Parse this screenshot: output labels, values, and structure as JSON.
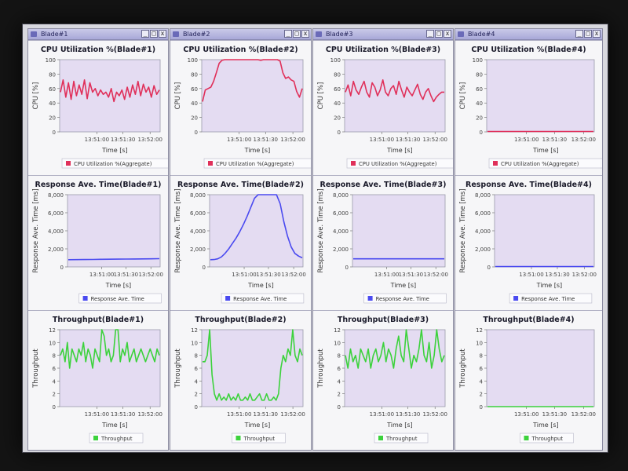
{
  "colors": {
    "cpu": "#e0305a",
    "response": "#4a4af0",
    "throughput": "#3cd23c",
    "plot_bg": "#e4dcf2"
  },
  "windows": [
    {
      "title": "Blade#1",
      "icons": {
        "minimize": "_",
        "maximize": "□",
        "close": "x"
      }
    },
    {
      "title": "Blade#2",
      "icons": {
        "minimize": "_",
        "maximize": "□",
        "close": "x"
      }
    },
    {
      "title": "Blade#3",
      "icons": {
        "minimize": "_",
        "maximize": "□",
        "close": "x"
      }
    },
    {
      "title": "Blade#4",
      "icons": {
        "minimize": "_",
        "maximize": "□",
        "close": "x"
      }
    }
  ],
  "chart_data": [
    {
      "id": "cpu-1",
      "type": "line",
      "title": "CPU Utilization %(Blade#1)",
      "xlabel": "Time [s]",
      "ylabel": "CPU [%]",
      "ylim": [
        0,
        100
      ],
      "yticks": [
        0,
        20,
        40,
        60,
        80,
        100
      ],
      "xticks": [
        "13:51:00",
        "13:51:30",
        "13:52:00"
      ],
      "legend": "CPU Utilization %(Aggregate)",
      "color": "#e0305a",
      "series": [
        {
          "name": "CPU Utilization %(Aggregate)",
          "values": [
            55,
            72,
            48,
            68,
            45,
            70,
            50,
            65,
            52,
            72,
            46,
            68,
            55,
            60,
            50,
            58,
            52,
            55,
            48,
            60,
            42,
            55,
            50,
            58,
            45,
            62,
            48,
            65,
            52,
            70,
            50,
            66,
            55,
            62,
            48,
            64,
            52,
            58
          ]
        }
      ]
    },
    {
      "id": "cpu-2",
      "type": "line",
      "title": "CPU Utilization %(Blade#2)",
      "xlabel": "Time [s]",
      "ylabel": "CPU [%]",
      "ylim": [
        0,
        100
      ],
      "yticks": [
        0,
        20,
        40,
        60,
        80,
        100
      ],
      "xticks": [
        "13:51:00",
        "13:51:30",
        "13:52:00"
      ],
      "legend": "CPU Utilization %(Aggregate)",
      "color": "#e0305a",
      "series": [
        {
          "name": "CPU Utilization %(Aggregate)",
          "values": [
            42,
            58,
            60,
            62,
            70,
            82,
            95,
            99,
            100,
            100,
            100,
            100,
            100,
            100,
            100,
            100,
            100,
            100,
            100,
            100,
            100,
            99,
            100,
            100,
            100,
            100,
            100,
            100,
            98,
            82,
            74,
            76,
            72,
            70,
            56,
            48,
            60
          ]
        }
      ]
    },
    {
      "id": "cpu-3",
      "type": "line",
      "title": "CPU Utilization %(Blade#3)",
      "xlabel": "Time [s]",
      "ylabel": "CPU [%]",
      "ylim": [
        0,
        100
      ],
      "yticks": [
        0,
        20,
        40,
        60,
        80,
        100
      ],
      "xticks": [
        "13:51:00",
        "13:51:30",
        "13:52:00"
      ],
      "legend": "CPU Utilization %(Aggregate)",
      "color": "#e0305a",
      "series": [
        {
          "name": "CPU Utilization %(Aggregate)",
          "values": [
            55,
            65,
            50,
            70,
            58,
            52,
            62,
            70,
            55,
            48,
            68,
            62,
            50,
            58,
            72,
            55,
            50,
            60,
            64,
            52,
            70,
            58,
            48,
            62,
            55,
            50,
            58,
            66,
            52,
            45,
            55,
            60,
            50,
            42,
            48,
            52,
            55,
            55
          ]
        }
      ]
    },
    {
      "id": "cpu-4",
      "type": "line",
      "title": "CPU Utilization %(Blade#4)",
      "xlabel": "Time [s]",
      "ylabel": "CPU [%]",
      "ylim": [
        0,
        100
      ],
      "yticks": [
        0,
        20,
        40,
        60,
        80,
        100
      ],
      "xticks": [
        "13:51:00",
        "13:51:30",
        "13:52:00"
      ],
      "legend": "CPU Utilization %(Aggregate)",
      "color": "#e0305a",
      "series": [
        {
          "name": "CPU Utilization %(Aggregate)",
          "values": [
            0.5,
            0.5,
            0.5,
            0.5,
            0.5,
            0.5,
            0.5,
            0.5,
            0.5,
            0.5
          ]
        }
      ]
    },
    {
      "id": "resp-1",
      "type": "line",
      "title": "Response Ave. Time(Blade#1)",
      "xlabel": "Time [s]",
      "ylabel": "Response Ave. Time [ms]",
      "ylim": [
        0,
        8000
      ],
      "yticks": [
        0,
        2000,
        4000,
        6000,
        8000
      ],
      "xticks": [
        "13:51:00",
        "13:51:30",
        "13:52:00"
      ],
      "legend": "Response Ave. Time",
      "color": "#4a4af0",
      "series": [
        {
          "name": "Response Ave. Time",
          "values": [
            800,
            810,
            820,
            830,
            840,
            850,
            860,
            870,
            880,
            890,
            900,
            910
          ]
        }
      ]
    },
    {
      "id": "resp-2",
      "type": "line",
      "title": "Response Ave. Time(Blade#2)",
      "xlabel": "Time [s]",
      "ylabel": "Response Ave. Time [ms]",
      "ylim": [
        0,
        8000
      ],
      "yticks": [
        0,
        2000,
        4000,
        6000,
        8000
      ],
      "xticks": [
        "13:51:00",
        "13:51:30",
        "13:52:00"
      ],
      "legend": "Response Ave. Time",
      "color": "#4a4af0",
      "series": [
        {
          "name": "Response Ave. Time",
          "values": [
            800,
            820,
            900,
            1100,
            1500,
            2000,
            2600,
            3200,
            3900,
            4700,
            5600,
            6600,
            7600,
            8200,
            8200,
            8200,
            8200,
            8200,
            8200,
            7000,
            5000,
            3400,
            2200,
            1500,
            1200,
            1000
          ]
        }
      ]
    },
    {
      "id": "resp-3",
      "type": "line",
      "title": "Response Ave. Time(Blade#3)",
      "xlabel": "Time [s]",
      "ylabel": "Response Ave. Time [ms]",
      "ylim": [
        0,
        8000
      ],
      "yticks": [
        0,
        2000,
        4000,
        6000,
        8000
      ],
      "xticks": [
        "13:51:00",
        "13:51:30",
        "13:52:00"
      ],
      "legend": "Response Ave. Time",
      "color": "#4a4af0",
      "series": [
        {
          "name": "Response Ave. Time",
          "values": [
            900,
            900,
            900,
            900,
            900,
            900,
            900,
            900,
            900,
            900
          ]
        }
      ]
    },
    {
      "id": "resp-4",
      "type": "line",
      "title": "Response Ave. Time(Blade#4)",
      "xlabel": "Time [s]",
      "ylabel": "Response Ave. Time [ms]",
      "ylim": [
        0,
        8000
      ],
      "yticks": [
        0,
        2000,
        4000,
        6000,
        8000
      ],
      "xticks": [
        "13:51:00",
        "13:51:30",
        "13:52:00"
      ],
      "legend": "Response Ave. Time",
      "color": "#4a4af0",
      "series": [
        {
          "name": "Response Ave. Time",
          "values": [
            40,
            40,
            40,
            40,
            40,
            40,
            40,
            40
          ]
        }
      ]
    },
    {
      "id": "thr-1",
      "type": "line",
      "title": "Throughput(Blade#1)",
      "xlabel": "Time [s]",
      "ylabel": "Throughput",
      "ylim": [
        0,
        12
      ],
      "yticks": [
        0,
        2,
        4,
        6,
        8,
        10,
        12
      ],
      "xticks": [
        "13:51:00",
        "13:51:30",
        "13:52:00"
      ],
      "legend": "Throughput",
      "color": "#3cd23c",
      "series": [
        {
          "name": "Throughput",
          "values": [
            8,
            9,
            7,
            10,
            6,
            9,
            8,
            7,
            9,
            8,
            10,
            7,
            9,
            8,
            6,
            9,
            8,
            7,
            12,
            11,
            8,
            9,
            7,
            8,
            12,
            12,
            7,
            9,
            8,
            10,
            7,
            8,
            9,
            7,
            8,
            9,
            8,
            7,
            8,
            9,
            8,
            7,
            9,
            8
          ]
        }
      ]
    },
    {
      "id": "thr-2",
      "type": "line",
      "title": "Throughput(Blade#2)",
      "xlabel": "Time [s]",
      "ylabel": "Throughput",
      "ylim": [
        0,
        12
      ],
      "yticks": [
        0,
        2,
        4,
        6,
        8,
        10,
        12
      ],
      "xticks": [
        "13:51:00",
        "13:51:30",
        "13:52:00"
      ],
      "legend": "Throughput",
      "color": "#3cd23c",
      "series": [
        {
          "name": "Throughput",
          "values": [
            7,
            7,
            8,
            12,
            5,
            2,
            1,
            2,
            1,
            1.5,
            1,
            2,
            1,
            1.5,
            1,
            2,
            1,
            1,
            1.5,
            1,
            2,
            1,
            1,
            1.5,
            2,
            1,
            1,
            2,
            1,
            1,
            1.5,
            1,
            2,
            6,
            8,
            7,
            9,
            8,
            12,
            8,
            7,
            9,
            8
          ]
        }
      ]
    },
    {
      "id": "thr-3",
      "type": "line",
      "title": "Throughput(Blade#3)",
      "xlabel": "Time [s]",
      "ylabel": "Throughput",
      "ylim": [
        0,
        12
      ],
      "yticks": [
        0,
        2,
        4,
        6,
        8,
        10,
        12
      ],
      "xticks": [
        "13:51:00",
        "13:51:30",
        "13:52:00"
      ],
      "legend": "Throughput",
      "color": "#3cd23c",
      "series": [
        {
          "name": "Throughput",
          "values": [
            8,
            6,
            9,
            7,
            8,
            6,
            9,
            8,
            7,
            9,
            6,
            8,
            9,
            7,
            8,
            10,
            7,
            9,
            8,
            6,
            9,
            11,
            8,
            7,
            12,
            9,
            6,
            8,
            7,
            9,
            12,
            8,
            7,
            10,
            6,
            8,
            12,
            9,
            7,
            8
          ]
        }
      ]
    },
    {
      "id": "thr-4",
      "type": "line",
      "title": "Throughput(Blade#4)",
      "xlabel": "Time [s]",
      "ylabel": "Throughput",
      "ylim": [
        0,
        12
      ],
      "yticks": [
        0,
        2,
        4,
        6,
        8,
        10,
        12
      ],
      "xticks": [
        "13:51:00",
        "13:51:30",
        "13:52:00"
      ],
      "legend": "Throughput",
      "color": "#3cd23c",
      "series": [
        {
          "name": "Throughput",
          "values": [
            0,
            0,
            0,
            0,
            0,
            0,
            0,
            0
          ]
        }
      ]
    }
  ]
}
